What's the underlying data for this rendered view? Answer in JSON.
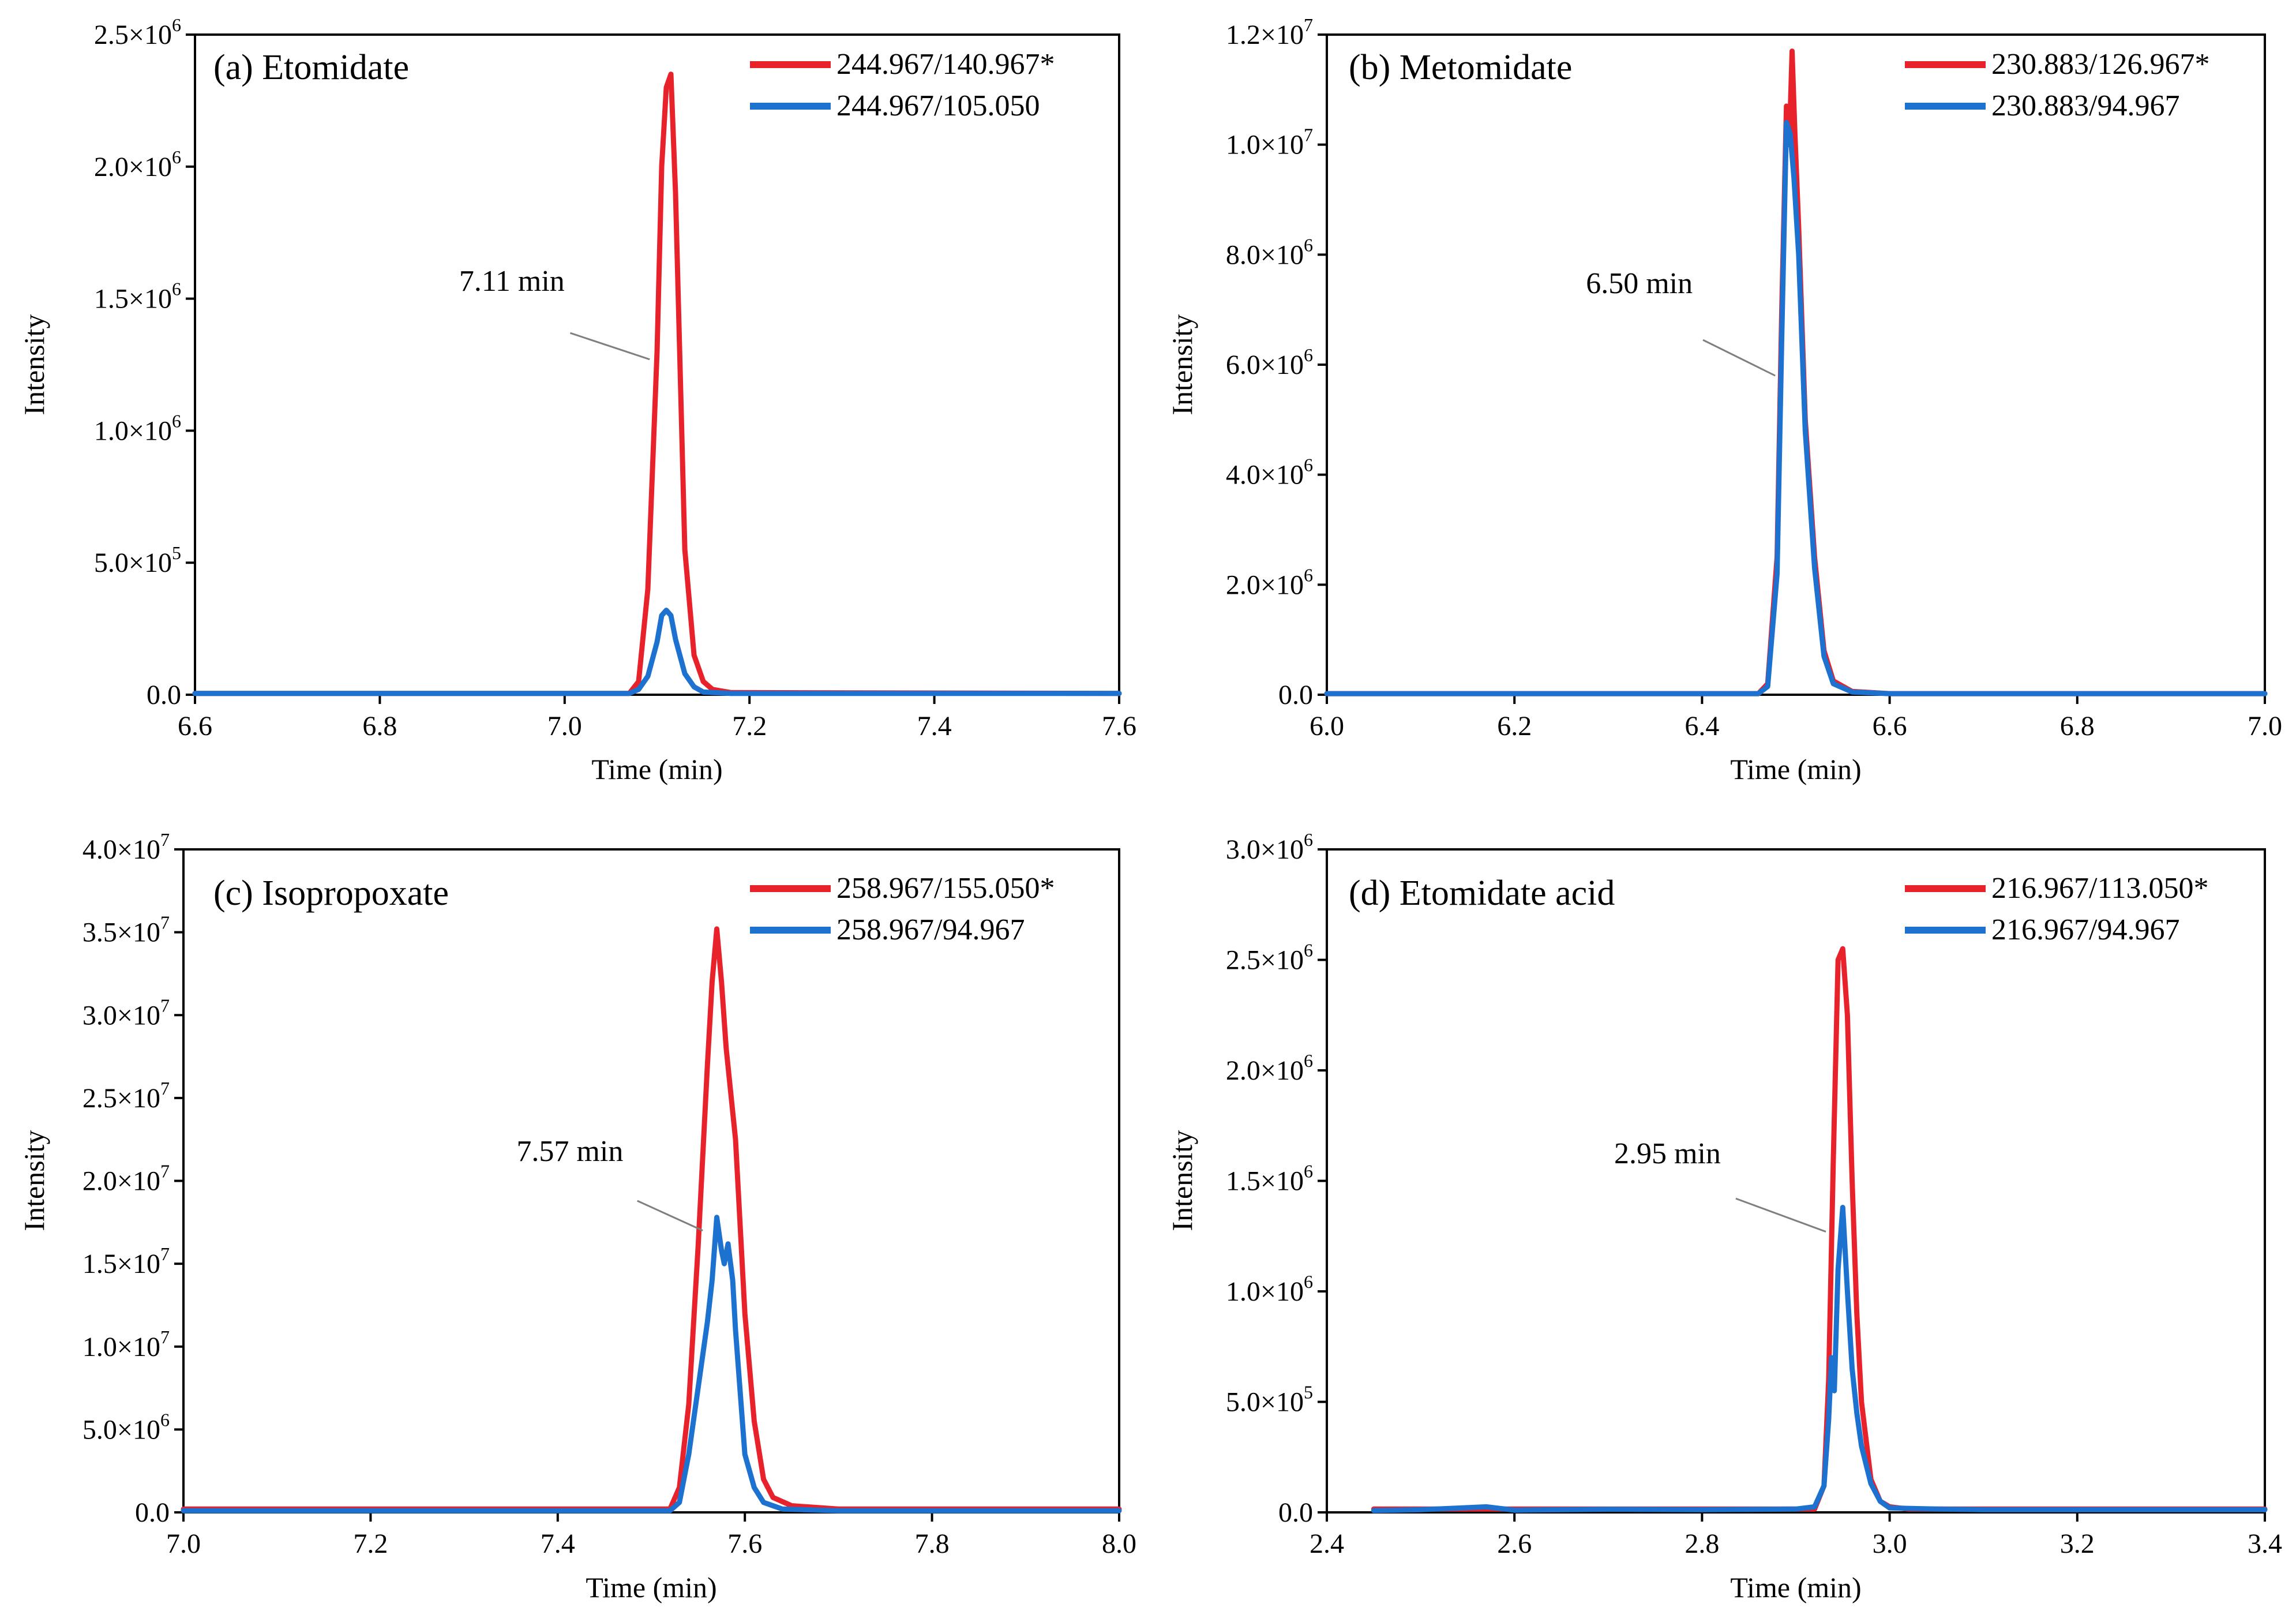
{
  "figure": {
    "panels": [
      {
        "id": "a",
        "title": "(a) Etomidate",
        "xlabel": "Time (min)",
        "ylabel": "Intensity",
        "xlim": [
          6.6,
          7.6
        ],
        "xticks": [
          6.6,
          6.8,
          7.0,
          7.2,
          7.4,
          7.6
        ],
        "xtick_labels": [
          "6.6",
          "6.8",
          "7.0",
          "7.2",
          "7.4",
          "7.6"
        ],
        "ylim": [
          0,
          2500000
        ],
        "yticks": [
          {
            "value": 0,
            "mantissa": "0.0",
            "exponent": ""
          },
          {
            "value": 500000,
            "mantissa": "5.0×10",
            "exponent": "5"
          },
          {
            "value": 1000000,
            "mantissa": "1.0×10",
            "exponent": "6"
          },
          {
            "value": 1500000,
            "mantissa": "1.5×10",
            "exponent": "6"
          },
          {
            "value": 2000000,
            "mantissa": "2.0×10",
            "exponent": "6"
          },
          {
            "value": 2500000,
            "mantissa": "2.5×10",
            "exponent": "6"
          }
        ],
        "annotation": {
          "text": "7.11 min",
          "text_x": 7.0,
          "text_y": 1530000,
          "line_from": [
            7.006,
            1370000
          ],
          "line_to": [
            7.092,
            1270000
          ]
        },
        "series": [
          {
            "name": "244.967/140.967*",
            "color": "#e8222b",
            "x": [
              6.6,
              7.07,
              7.08,
              7.09,
              7.1,
              7.105,
              7.11,
              7.115,
              7.12,
              7.13,
              7.14,
              7.15,
              7.16,
              7.18,
              7.6
            ],
            "y": [
              5000,
              5000,
              50000,
              400000,
              1300000,
              2000000,
              2300000,
              2350000,
              1900000,
              550000,
              150000,
              50000,
              20000,
              8000,
              5000
            ]
          },
          {
            "name": "244.967/105.050",
            "color": "#1d72d0",
            "x": [
              6.6,
              7.07,
              7.08,
              7.09,
              7.1,
              7.105,
              7.11,
              7.115,
              7.12,
              7.13,
              7.14,
              7.15,
              7.18,
              7.6
            ],
            "y": [
              5000,
              5000,
              20000,
              70000,
              200000,
              300000,
              320000,
              300000,
              210000,
              80000,
              30000,
              10000,
              5000,
              5000
            ]
          }
        ]
      },
      {
        "id": "b",
        "title": "(b) Metomidate",
        "xlabel": "Time (min)",
        "ylabel": "Intensity",
        "xlim": [
          6.0,
          7.0
        ],
        "xticks": [
          6.0,
          6.2,
          6.4,
          6.6,
          6.8,
          7.0
        ],
        "xtick_labels": [
          "6.0",
          "6.2",
          "6.4",
          "6.6",
          "6.8",
          "7.0"
        ],
        "ylim": [
          0,
          12000000
        ],
        "yticks": [
          {
            "value": 0,
            "mantissa": "0.0",
            "exponent": ""
          },
          {
            "value": 2000000,
            "mantissa": "2.0×10",
            "exponent": "6"
          },
          {
            "value": 4000000,
            "mantissa": "4.0×10",
            "exponent": "6"
          },
          {
            "value": 6000000,
            "mantissa": "6.0×10",
            "exponent": "6"
          },
          {
            "value": 8000000,
            "mantissa": "8.0×10",
            "exponent": "6"
          },
          {
            "value": 10000000,
            "mantissa": "1.0×10",
            "exponent": "7"
          },
          {
            "value": 12000000,
            "mantissa": "1.2×10",
            "exponent": "7"
          }
        ],
        "annotation": {
          "text": "6.50 min",
          "text_x": 6.39,
          "text_y": 7300000,
          "line_from": [
            6.401,
            6450000
          ],
          "line_to": [
            6.478,
            5800000
          ]
        },
        "series": [
          {
            "name": "230.883/126.967*",
            "color": "#e8222b",
            "x": [
              6.0,
              6.46,
              6.47,
              6.48,
              6.485,
              6.49,
              6.493,
              6.496,
              6.499,
              6.503,
              6.51,
              6.52,
              6.53,
              6.54,
              6.56,
              6.6,
              7.0
            ],
            "y": [
              20000,
              20000,
              200000,
              2500000,
              7000000,
              10700000,
              10000000,
              11700000,
              10200000,
              8500000,
              5000000,
              2500000,
              800000,
              250000,
              60000,
              20000,
              20000
            ]
          },
          {
            "name": "230.883/94.967",
            "color": "#1d72d0",
            "x": [
              6.0,
              6.46,
              6.47,
              6.48,
              6.485,
              6.49,
              6.494,
              6.498,
              6.503,
              6.51,
              6.52,
              6.53,
              6.54,
              6.56,
              6.6,
              7.0
            ],
            "y": [
              20000,
              20000,
              150000,
              2200000,
              6500000,
              10400000,
              10200000,
              9400000,
              8000000,
              4800000,
              2300000,
              700000,
              200000,
              50000,
              20000,
              20000
            ]
          }
        ]
      },
      {
        "id": "c",
        "title": "(c) Isopropoxate",
        "xlabel": "Time (min)",
        "ylabel": "Intensity",
        "xlim": [
          7.0,
          8.0
        ],
        "xticks": [
          7.0,
          7.2,
          7.4,
          7.6,
          7.8,
          8.0
        ],
        "xtick_labels": [
          "7.0",
          "7.2",
          "7.4",
          "7.6",
          "7.8",
          "8.0"
        ],
        "ylim": [
          0,
          40000000
        ],
        "yticks": [
          {
            "value": 0,
            "mantissa": "0.0",
            "exponent": ""
          },
          {
            "value": 5000000,
            "mantissa": "5.0×10",
            "exponent": "6"
          },
          {
            "value": 10000000,
            "mantissa": "1.0×10",
            "exponent": "7"
          },
          {
            "value": 15000000,
            "mantissa": "1.5×10",
            "exponent": "7"
          },
          {
            "value": 20000000,
            "mantissa": "2.0×10",
            "exponent": "7"
          },
          {
            "value": 25000000,
            "mantissa": "2.5×10",
            "exponent": "7"
          },
          {
            "value": 30000000,
            "mantissa": "3.0×10",
            "exponent": "7"
          },
          {
            "value": 35000000,
            "mantissa": "3.5×10",
            "exponent": "7"
          },
          {
            "value": 40000000,
            "mantissa": "4.0×10",
            "exponent": "7"
          }
        ],
        "annotation": {
          "text": "7.57 min",
          "text_x": 7.47,
          "text_y": 21200000,
          "line_from": [
            7.485,
            18800000
          ],
          "line_to": [
            7.555,
            17000000
          ]
        },
        "series": [
          {
            "name": "258.967/155.050*",
            "color": "#e8222b",
            "x": [
              7.0,
              7.52,
              7.53,
              7.54,
              7.55,
              7.56,
              7.565,
              7.57,
              7.575,
              7.58,
              7.59,
              7.6,
              7.61,
              7.62,
              7.63,
              7.65,
              7.7,
              8.0
            ],
            "y": [
              200000,
              200000,
              1500000,
              6500000,
              16000000,
              27000000,
              32000000,
              35200000,
              32000000,
              28000000,
              22500000,
              12000000,
              5500000,
              2000000,
              900000,
              400000,
              200000,
              200000
            ]
          },
          {
            "name": "258.967/94.967",
            "color": "#1d72d0",
            "x": [
              7.0,
              7.52,
              7.53,
              7.54,
              7.55,
              7.56,
              7.565,
              7.57,
              7.575,
              7.578,
              7.582,
              7.587,
              7.59,
              7.6,
              7.61,
              7.62,
              7.64,
              7.7,
              8.0
            ],
            "y": [
              100000,
              100000,
              600000,
              3500000,
              7500000,
              11500000,
              14000000,
              17800000,
              15800000,
              15000000,
              16200000,
              14000000,
              11000000,
              3500000,
              1500000,
              600000,
              200000,
              100000,
              100000
            ]
          }
        ]
      },
      {
        "id": "d",
        "title": "(d) Etomidate acid",
        "xlabel": "Time (min)",
        "ylabel": "Intensity",
        "xlim": [
          2.4,
          3.4
        ],
        "xticks": [
          2.4,
          2.6,
          2.8,
          3.0,
          3.2,
          3.4
        ],
        "xtick_labels": [
          "2.4",
          "2.6",
          "2.8",
          "3.0",
          "3.2",
          "3.4"
        ],
        "ylim": [
          0,
          3000000
        ],
        "yticks": [
          {
            "value": 0,
            "mantissa": "0.0",
            "exponent": ""
          },
          {
            "value": 500000,
            "mantissa": "5.0×10",
            "exponent": "5"
          },
          {
            "value": 1000000,
            "mantissa": "1.0×10",
            "exponent": "6"
          },
          {
            "value": 1500000,
            "mantissa": "1.5×10",
            "exponent": "6"
          },
          {
            "value": 2000000,
            "mantissa": "2.0×10",
            "exponent": "6"
          },
          {
            "value": 2500000,
            "mantissa": "2.5×10",
            "exponent": "6"
          },
          {
            "value": 3000000,
            "mantissa": "3.0×10",
            "exponent": "6"
          }
        ],
        "annotation": {
          "text": "2.95 min",
          "text_x": 2.82,
          "text_y": 1580000,
          "line_from": [
            2.836,
            1420000
          ],
          "line_to": [
            2.932,
            1270000
          ]
        },
        "series": [
          {
            "name": "216.967/113.050*",
            "color": "#e8222b",
            "x": [
              2.45,
              2.92,
              2.93,
              2.935,
              2.94,
              2.945,
              2.95,
              2.955,
              2.96,
              2.965,
              2.97,
              2.98,
              2.99,
              3.0,
              3.02,
              3.4
            ],
            "y": [
              15000,
              15000,
              120000,
              600000,
              1600000,
              2500000,
              2550000,
              2250000,
              1500000,
              900000,
              500000,
              150000,
              50000,
              25000,
              15000,
              15000
            ]
          },
          {
            "name": "216.967/94.967",
            "color": "#1d72d0",
            "x": [
              2.45,
              2.5,
              2.57,
              2.6,
              2.7,
              2.8,
              2.9,
              2.92,
              2.93,
              2.935,
              2.938,
              2.941,
              2.945,
              2.95,
              2.955,
              2.96,
              2.965,
              2.97,
              2.98,
              2.99,
              3.0,
              3.05,
              3.1,
              3.4
            ],
            "y": [
              8000,
              12000,
              25000,
              10000,
              14000,
              12000,
              15000,
              25000,
              120000,
              420000,
              700000,
              550000,
              1100000,
              1380000,
              1000000,
              650000,
              450000,
              300000,
              130000,
              50000,
              20000,
              15000,
              12000,
              12000
            ]
          }
        ]
      }
    ]
  }
}
